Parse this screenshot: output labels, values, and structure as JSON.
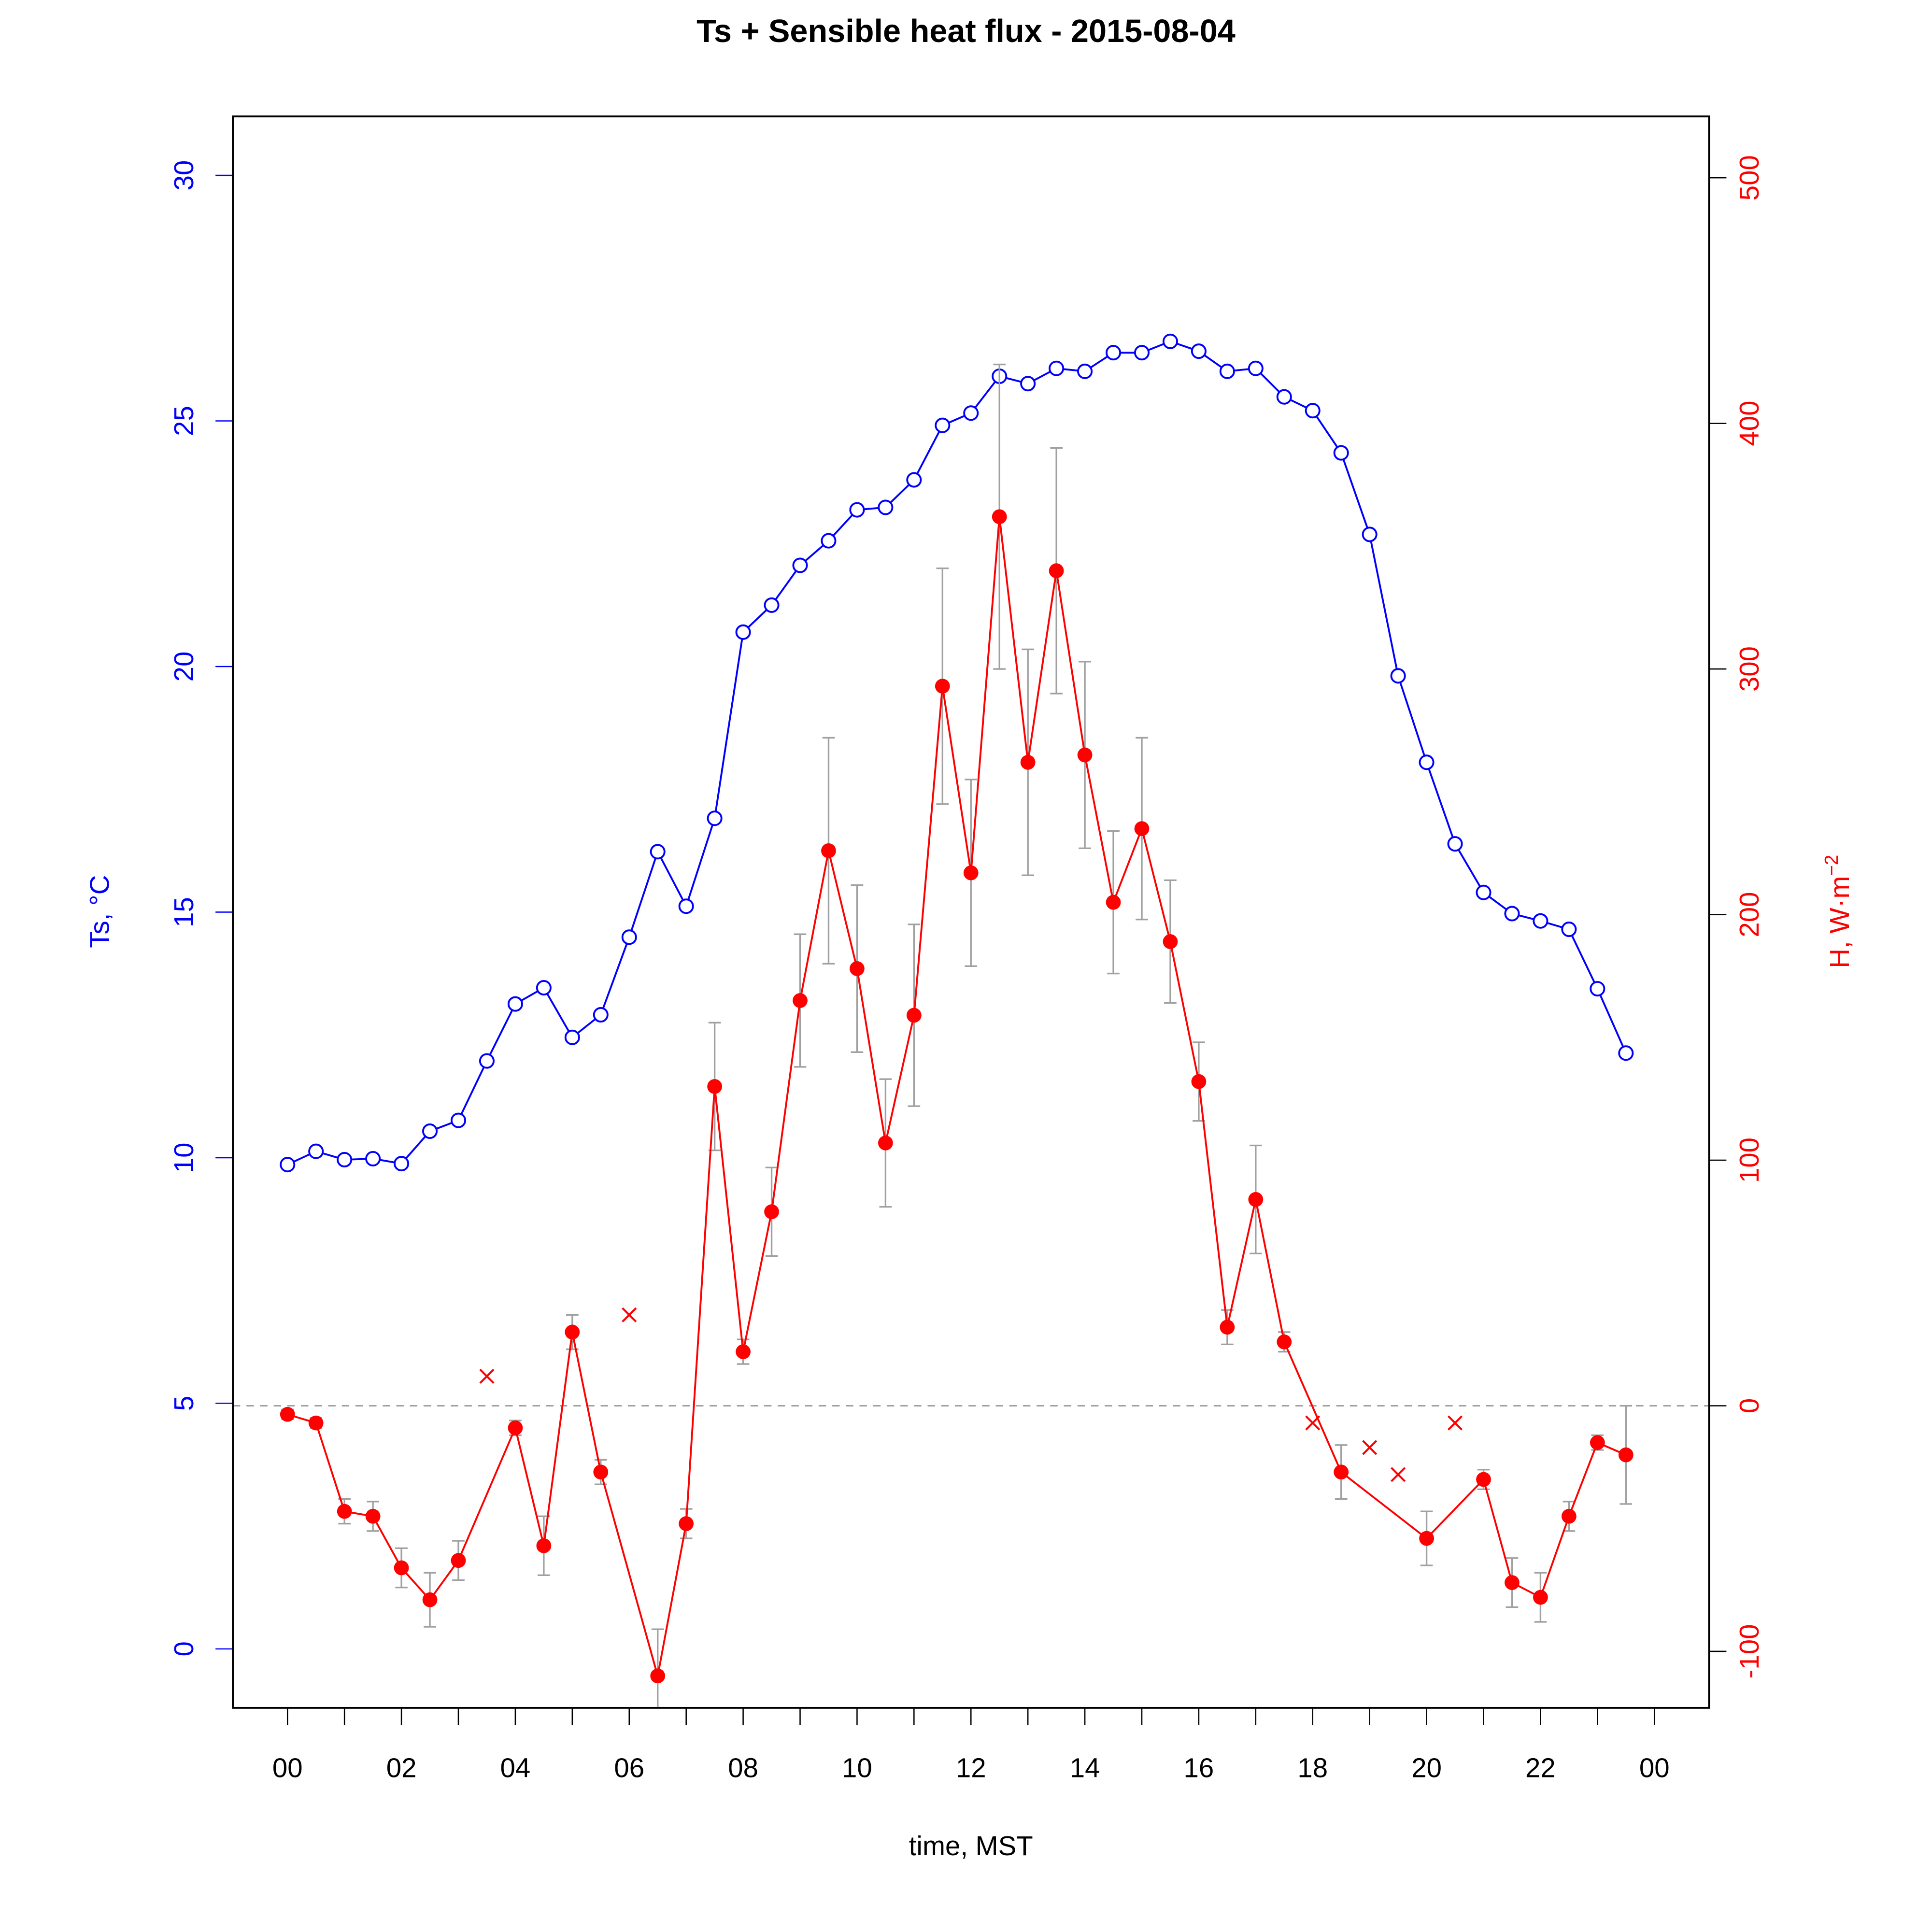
{
  "chart_data": {
    "type": "line",
    "title": "Ts + Sensible heat flux -  2015-08-04",
    "xlabel": "time, MST",
    "ylabel_left": "Ts, °C",
    "ylabel_right_main": "H, W·m",
    "ylabel_right_sup": "−2",
    "x_tick_labels": [
      "00",
      "02",
      "04",
      "06",
      "08",
      "10",
      "12",
      "14",
      "16",
      "18",
      "20",
      "22",
      "00"
    ],
    "x_tick_hours": [
      0,
      2,
      4,
      6,
      8,
      10,
      12,
      14,
      16,
      18,
      20,
      22,
      24
    ],
    "xlim_hours": [
      -0.96,
      24.96
    ],
    "ylim_left": [
      -1.2,
      31.2
    ],
    "ylim_right": [
      -123,
      525
    ],
    "y_left_ticks": [
      0,
      5,
      10,
      15,
      20,
      25,
      30
    ],
    "y_right_ticks": [
      -100,
      0,
      100,
      200,
      300,
      400,
      500
    ],
    "y_left_tick_labels": [
      "0",
      "5",
      "10",
      "15",
      "20",
      "25",
      "30"
    ],
    "y_right_tick_labels": [
      "-100",
      "0",
      "100",
      "200",
      "300",
      "400",
      "500"
    ],
    "zero_line_H": 0,
    "colors": {
      "ts": "#0000ff",
      "h": "#ff0000",
      "err": "#a0a0a0",
      "ref": "#a0a0a0"
    },
    "x_hours": [
      0,
      0.5,
      1,
      1.5,
      2,
      2.5,
      3,
      3.5,
      4,
      4.5,
      5,
      5.5,
      6,
      6.5,
      7,
      7.5,
      8,
      8.5,
      9,
      9.5,
      10,
      10.5,
      11,
      11.5,
      12,
      12.5,
      13,
      13.5,
      14,
      14.5,
      15,
      15.5,
      16,
      16.5,
      17,
      17.5,
      18,
      18.5,
      19,
      19.5,
      20,
      20.5,
      21,
      21.5,
      22,
      22.5,
      23,
      23.5
    ],
    "series": [
      {
        "name": "Ts",
        "axis": "left",
        "marker": "open-circle",
        "values": [
          9.86,
          10.13,
          9.96,
          9.98,
          9.88,
          10.54,
          10.76,
          11.97,
          13.13,
          13.46,
          12.45,
          12.91,
          14.49,
          16.23,
          15.12,
          16.91,
          20.7,
          21.25,
          22.06,
          22.56,
          23.19,
          23.24,
          23.8,
          24.91,
          25.16,
          25.91,
          25.76,
          26.07,
          26.01,
          26.39,
          26.39,
          26.62,
          26.42,
          26.01,
          26.07,
          25.49,
          25.21,
          24.35,
          22.69,
          19.81,
          18.05,
          16.39,
          15.4,
          14.97,
          14.82,
          14.65,
          13.44,
          12.13
        ]
      },
      {
        "name": "H",
        "axis": "right",
        "marker": "filled-circle",
        "values": [
          -3.5,
          -7,
          -43,
          -45,
          -66,
          -79,
          -63,
          12,
          -9,
          -57,
          30,
          -27,
          37,
          -110,
          -48,
          130,
          22,
          79,
          165,
          226,
          178,
          107,
          159,
          293,
          217,
          362,
          262,
          340,
          265,
          205,
          235,
          189,
          132,
          32,
          84,
          26,
          -7,
          -27,
          -17,
          -28,
          -54,
          -7,
          -30,
          -72,
          -78,
          -45,
          -15,
          -20
        ],
        "flagged": [
          false,
          false,
          false,
          false,
          false,
          false,
          false,
          true,
          false,
          false,
          false,
          false,
          true,
          false,
          false,
          false,
          false,
          false,
          false,
          false,
          false,
          false,
          false,
          false,
          false,
          false,
          false,
          false,
          false,
          false,
          false,
          false,
          false,
          false,
          false,
          false,
          true,
          false,
          true,
          true,
          false,
          true,
          false,
          false,
          false,
          false,
          false,
          false
        ],
        "error": [
          2,
          2,
          5,
          6,
          8,
          11,
          8,
          null,
          3,
          12,
          7,
          5,
          null,
          19,
          6,
          26,
          5,
          18,
          27,
          46,
          34,
          26,
          37,
          48,
          38,
          62,
          46,
          50,
          38,
          29,
          37,
          25,
          16,
          7,
          22,
          4,
          null,
          11,
          null,
          null,
          11,
          null,
          4,
          10,
          10,
          6,
          3,
          20
        ]
      }
    ]
  }
}
